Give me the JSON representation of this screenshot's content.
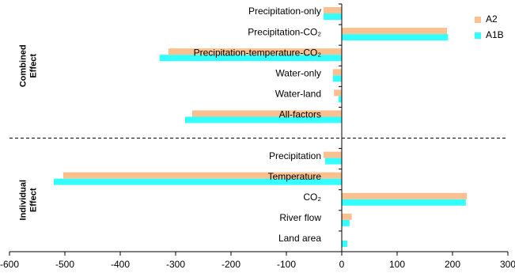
{
  "chart_data": {
    "type": "hbar",
    "categories": [
      "Precipitation-only",
      "Precipitation-CO₂",
      "Precipitation-temperature-CO₂",
      "Water-only",
      "Water-land",
      "All-factors",
      "Precipitation",
      "Temperature",
      "CO₂",
      "River flow",
      "Land area"
    ],
    "groups": [
      [
        "Combined",
        "Effect"
      ],
      [
        "Individual",
        "Effect"
      ]
    ],
    "series": [
      {
        "name": "A2",
        "color": "#fac090",
        "values": [
          -33,
          190,
          -313,
          -16,
          -14,
          -270,
          -33,
          -503,
          226,
          18,
          0
        ]
      },
      {
        "name": "A1B",
        "color": "#33ffff",
        "values": [
          -33,
          192,
          -329,
          -16,
          -6,
          -283,
          -30,
          -520,
          224,
          14,
          10
        ]
      }
    ],
    "xlim": [
      -600,
      300
    ],
    "xticks": [
      -600,
      -500,
      -400,
      -300,
      -200,
      -100,
      0,
      100,
      200,
      300
    ],
    "legend": "upper right"
  }
}
